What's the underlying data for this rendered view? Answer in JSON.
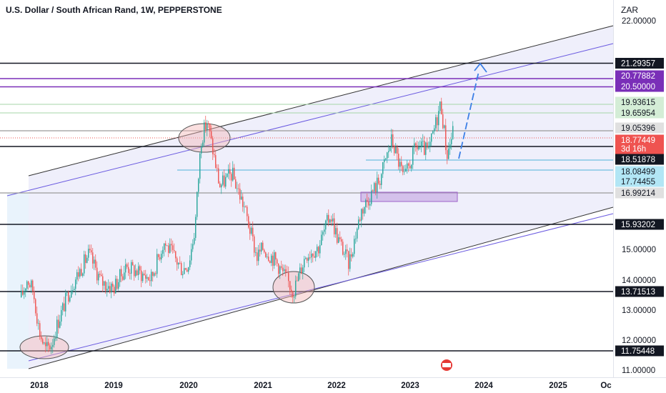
{
  "header": {
    "title": "U.S. Dollar / South African Rand, 1W, PEPPERSTONE",
    "currency": "ZAR"
  },
  "colors": {
    "up": "#26a69a",
    "down": "#ef5350",
    "channel_fill": "#dad8f5",
    "channel_line": "#6a5ae0",
    "level_black": "#131722",
    "level_purple": "#7a2fb8",
    "level_green": "#a5d6a7",
    "level_cyan": "#4fb3d9",
    "arrow": "#3c7fe6"
  },
  "chart_data": {
    "type": "candlestick",
    "symbol": "U.S. Dollar / South African Rand",
    "interval": "1W",
    "source": "PEPPERSTONE",
    "currency": "ZAR",
    "y_ticks": [
      "22.00000",
      "15.00000",
      "14.00000",
      "13.00000",
      "12.00000",
      "11.00000"
    ],
    "x_ticks": [
      "2018",
      "2019",
      "2020",
      "2021",
      "2022",
      "2023",
      "2024",
      "2025",
      "Oc"
    ],
    "price_labels": [
      {
        "text": "21.29357",
        "style": "black"
      },
      {
        "text": "20.77882",
        "style": "purple"
      },
      {
        "text": "20.50000",
        "style": "purple"
      },
      {
        "text": "19.93615",
        "style": "green"
      },
      {
        "text": "19.65954",
        "style": "green"
      },
      {
        "text": "19.05396",
        "style": "gray"
      },
      {
        "text": "18.77449",
        "style": "red"
      },
      {
        "text": "3d 16h",
        "style": "red"
      },
      {
        "text": "18.51878",
        "style": "black"
      },
      {
        "text": "18.08499",
        "style": "cyan"
      },
      {
        "text": "17.74455",
        "style": "cyan"
      },
      {
        "text": "16.99214",
        "style": "gray"
      },
      {
        "text": "15.93202",
        "style": "black"
      },
      {
        "text": "13.71513",
        "style": "black"
      },
      {
        "text": "11.75448",
        "style": "black"
      }
    ],
    "series_anchors": [
      [
        "2017-10",
        13.4
      ],
      [
        "2017-11",
        14.0
      ],
      [
        "2017-12",
        13.6
      ],
      [
        "2018-01",
        12.3
      ],
      [
        "2018-02",
        11.7
      ],
      [
        "2018-03",
        11.9
      ],
      [
        "2018-04",
        12.6
      ],
      [
        "2018-06",
        13.7
      ],
      [
        "2018-09",
        14.8
      ],
      [
        "2018-11",
        13.9
      ],
      [
        "2019-01",
        13.7
      ],
      [
        "2019-03",
        14.4
      ],
      [
        "2019-05",
        14.2
      ],
      [
        "2019-07",
        14.0
      ],
      [
        "2019-09",
        15.2
      ],
      [
        "2019-12",
        14.3
      ],
      [
        "2020-01",
        14.5
      ],
      [
        "2020-02",
        15.6
      ],
      [
        "2020-03",
        18.5
      ],
      [
        "2020-04",
        19.1
      ],
      [
        "2020-06",
        17.0
      ],
      [
        "2020-08",
        17.4
      ],
      [
        "2020-10",
        16.3
      ],
      [
        "2020-12",
        14.7
      ],
      [
        "2021-01",
        15.0
      ],
      [
        "2021-03",
        14.6
      ],
      [
        "2021-06",
        13.6
      ],
      [
        "2021-08",
        14.8
      ],
      [
        "2021-10",
        15.0
      ],
      [
        "2021-12",
        16.1
      ],
      [
        "2022-01",
        15.4
      ],
      [
        "2022-03",
        14.5
      ],
      [
        "2022-05",
        16.2
      ],
      [
        "2022-08",
        17.2
      ],
      [
        "2022-10",
        18.5
      ],
      [
        "2022-12",
        17.2
      ],
      [
        "2023-02",
        18.3
      ],
      [
        "2023-04",
        18.1
      ],
      [
        "2023-06",
        19.7
      ],
      [
        "2023-07",
        18.0
      ],
      [
        "2023-08",
        18.77
      ]
    ]
  }
}
